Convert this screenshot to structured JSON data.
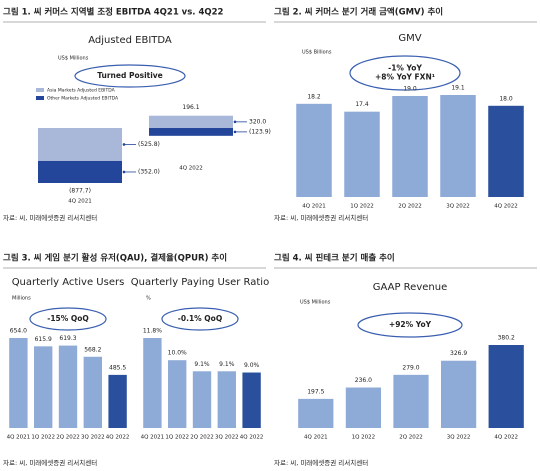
{
  "panels": [
    {
      "heading": "그림 1. 씨 커머스 지역별 조정 EBITDA 4Q21 vs. 4Q22",
      "source": "자료: 씨, 미래에셋증권 리서치센터"
    },
    {
      "heading": "그림 2. 씨 커머스 분기 거래 금액(GMV) 추이",
      "source": "자료: 씨, 미래에셋증권 리서치센터"
    },
    {
      "heading": "그림 3. 씨 게임 분기 활성 유저(QAU), 결제율(QPUR) 추이",
      "source": "자료: 씨, 미래에셋증권 리서치센터"
    },
    {
      "heading": "그림 4. 씨 핀테크 분기 매출 추이",
      "source": "자료: 씨, 미래에셋증권 리서치센터"
    }
  ],
  "chart_data": [
    {
      "type": "waterfall",
      "title": "Adjusted EBITDA",
      "unit": "US$ Millions",
      "annotation": [
        "Turned Positive"
      ],
      "categories": [
        "4Q 2021",
        "4Q 2022"
      ],
      "series": [
        {
          "name": "Asia Markets Adjusted EBITDA",
          "color": "#a9b7d9",
          "values": [
            -525.8,
            320.0
          ],
          "value_labels": [
            "(525.8)",
            "320.0"
          ]
        },
        {
          "name": "Other Markets Adjusted EBITDA",
          "color": "#23459a",
          "values": [
            -352.0,
            -123.9
          ],
          "value_labels": [
            "(352.0)",
            "(123.9)"
          ]
        }
      ],
      "totals": {
        "values": [
          -877.7,
          196.1
        ],
        "value_labels": [
          "(877.7)",
          "196.1"
        ]
      }
    },
    {
      "type": "bar",
      "title": "GMV",
      "unit": "US$ Billions",
      "annotation": [
        "-1% YoY",
        "+8% YoY FXN¹"
      ],
      "categories": [
        "4Q 2021",
        "1Q 2022",
        "2Q 2022",
        "3Q 2022",
        "4Q 2022"
      ],
      "values": [
        18.2,
        17.4,
        19.0,
        19.1,
        18.0
      ],
      "value_labels": [
        "18.2",
        "17.4",
        "19.0",
        "19.1",
        "18.0"
      ],
      "colors": [
        "#8eaad6",
        "#8eaad6",
        "#8eaad6",
        "#8eaad6",
        "#2a4f9c"
      ]
    },
    {
      "type": "bar",
      "title": "Quarterly Active Users",
      "unit": "Millions",
      "annotation": [
        "-15% QoQ"
      ],
      "categories": [
        "4Q 2021",
        "1Q 2022",
        "2Q 2022",
        "3Q 2022",
        "4Q 2022"
      ],
      "values": [
        654.0,
        615.9,
        619.3,
        568.2,
        485.5
      ],
      "value_labels": [
        "654.0",
        "615.9",
        "619.3",
        "568.2",
        "485.5"
      ],
      "colors": [
        "#8eaad6",
        "#8eaad6",
        "#8eaad6",
        "#8eaad6",
        "#2a4f9c"
      ]
    },
    {
      "type": "bar",
      "title": "Quarterly Paying User Ratio",
      "unit": "%",
      "annotation": [
        "-0.1% QoQ"
      ],
      "categories": [
        "4Q 2021",
        "1Q 2022",
        "2Q 2022",
        "3Q 2022",
        "4Q 2022"
      ],
      "values": [
        11.8,
        10.0,
        9.1,
        9.1,
        9.0
      ],
      "value_labels": [
        "11.8%",
        "10.0%",
        "9.1%",
        "9.1%",
        "9.0%"
      ],
      "colors": [
        "#8eaad6",
        "#8eaad6",
        "#8eaad6",
        "#8eaad6",
        "#2a4f9c"
      ]
    },
    {
      "type": "bar",
      "title": "GAAP Revenue",
      "unit": "US$ Millions",
      "annotation": [
        "+92% YoY"
      ],
      "categories": [
        "4Q 2021",
        "1Q 2022",
        "2Q 2022",
        "3Q 2022",
        "4Q 2022"
      ],
      "values": [
        197.5,
        236.0,
        279.0,
        326.9,
        380.2
      ],
      "value_labels": [
        "197.5",
        "236.0",
        "279.0",
        "326.9",
        "380.2"
      ],
      "colors": [
        "#8eaad6",
        "#8eaad6",
        "#8eaad6",
        "#8eaad6",
        "#2a4f9c"
      ]
    }
  ]
}
